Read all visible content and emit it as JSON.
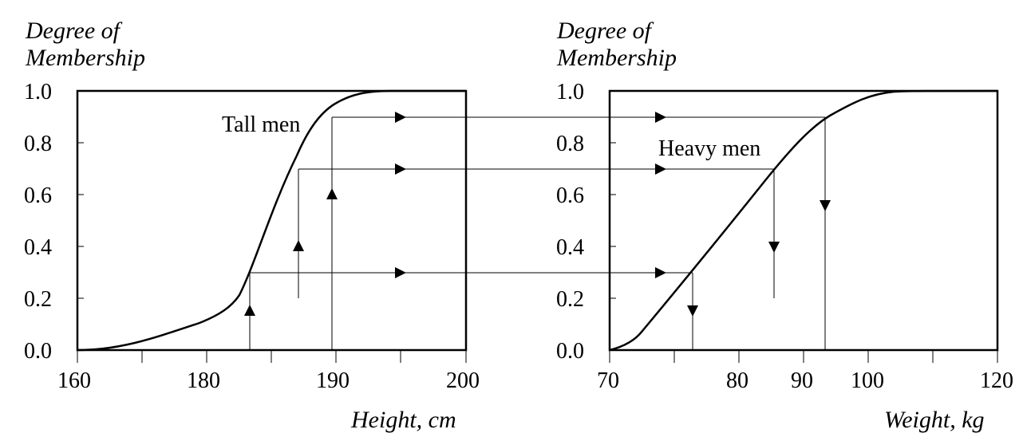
{
  "left_panel": {
    "ylabel_line1": "Degree of",
    "ylabel_line2": "Membership",
    "xlabel": "Height, cm",
    "curve_label": "Tall men",
    "y_ticks": [
      "1.0",
      "0.8",
      "0.6",
      "0.4",
      "0.2",
      "0.0"
    ],
    "x_ticks": [
      "160",
      "180",
      "190",
      "200"
    ]
  },
  "right_panel": {
    "ylabel_line1": "Degree of",
    "ylabel_line2": "Membership",
    "xlabel": "Weight, kg",
    "curve_label": "Heavy men",
    "y_ticks": [
      "1.0",
      "0.8",
      "0.6",
      "0.4",
      "0.2",
      "0.0"
    ],
    "x_ticks": [
      "70",
      "80",
      "90",
      "100",
      "120"
    ]
  },
  "mappings": [
    {
      "height": 183.5,
      "degree": 0.3,
      "weight": 76.5
    },
    {
      "height": 187,
      "degree": 0.7,
      "weight": 83
    },
    {
      "height": 189.5,
      "degree": 0.9,
      "weight": 87
    }
  ]
}
